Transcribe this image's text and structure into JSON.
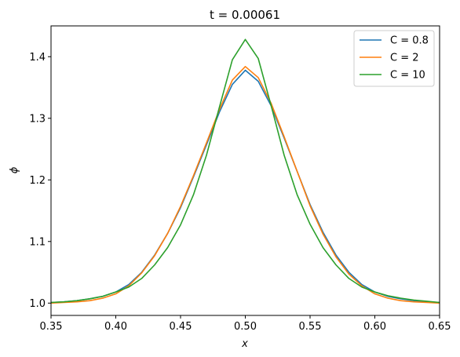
{
  "chart_data": {
    "type": "line",
    "title": "t = 0.00061",
    "xlabel": "x",
    "ylabel": "ϕ",
    "xlim": [
      0.35,
      0.65
    ],
    "ylim": [
      0.98,
      1.45
    ],
    "xticks": [
      0.35,
      0.4,
      0.45,
      0.5,
      0.55,
      0.6,
      0.65
    ],
    "xtick_labels": [
      "0.35",
      "0.40",
      "0.45",
      "0.50",
      "0.55",
      "0.60",
      "0.65"
    ],
    "yticks": [
      1.0,
      1.1,
      1.2,
      1.3,
      1.4
    ],
    "ytick_labels": [
      "1.0",
      "1.1",
      "1.2",
      "1.3",
      "1.4"
    ],
    "grid": false,
    "legend_position": "top-right",
    "x": [
      0.35,
      0.36,
      0.37,
      0.38,
      0.39,
      0.4,
      0.41,
      0.42,
      0.43,
      0.44,
      0.45,
      0.46,
      0.47,
      0.48,
      0.49,
      0.5,
      0.51,
      0.52,
      0.53,
      0.54,
      0.55,
      0.56,
      0.57,
      0.58,
      0.59,
      0.6,
      0.61,
      0.62,
      0.63,
      0.64,
      0.65
    ],
    "series": [
      {
        "name": "C = 0.8",
        "color": "#1f77b4",
        "values": [
          1.001,
          1.002,
          1.004,
          1.007,
          1.011,
          1.018,
          1.03,
          1.05,
          1.078,
          1.113,
          1.155,
          1.205,
          1.257,
          1.31,
          1.355,
          1.378,
          1.36,
          1.32,
          1.268,
          1.214,
          1.16,
          1.115,
          1.078,
          1.05,
          1.03,
          1.018,
          1.011,
          1.007,
          1.004,
          1.002,
          1.001
        ]
      },
      {
        "name": "C = 2",
        "color": "#ff7f0e",
        "values": [
          1.0,
          1.001,
          1.002,
          1.004,
          1.008,
          1.015,
          1.028,
          1.049,
          1.077,
          1.113,
          1.157,
          1.207,
          1.26,
          1.314,
          1.362,
          1.384,
          1.366,
          1.324,
          1.27,
          1.214,
          1.158,
          1.112,
          1.075,
          1.047,
          1.028,
          1.015,
          1.008,
          1.004,
          1.002,
          1.001,
          1.0
        ]
      },
      {
        "name": "C = 10",
        "color": "#2ca02c",
        "values": [
          1.001,
          1.002,
          1.004,
          1.007,
          1.011,
          1.018,
          1.026,
          1.04,
          1.062,
          1.09,
          1.127,
          1.176,
          1.24,
          1.318,
          1.395,
          1.428,
          1.397,
          1.32,
          1.24,
          1.176,
          1.128,
          1.09,
          1.062,
          1.04,
          1.026,
          1.018,
          1.012,
          1.008,
          1.005,
          1.003,
          1.001
        ]
      }
    ]
  }
}
